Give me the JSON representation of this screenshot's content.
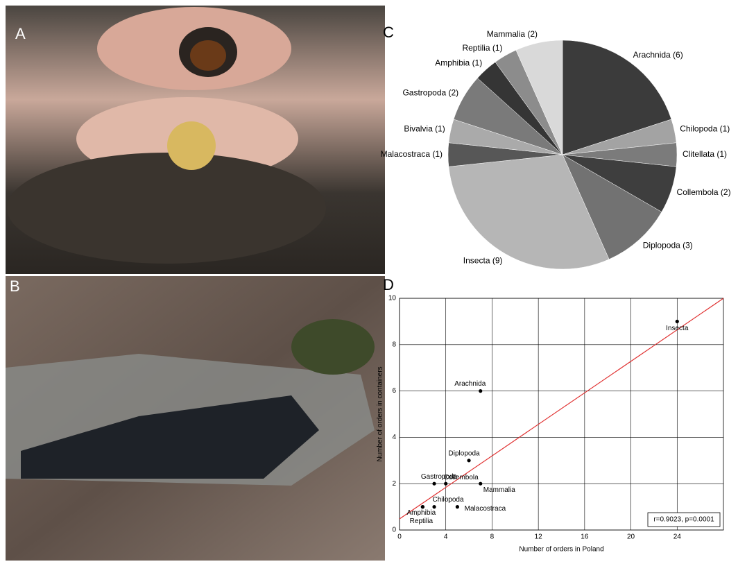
{
  "panels": [
    "A",
    "B",
    "C",
    "D"
  ],
  "chart_data": [
    {
      "type": "pie",
      "categories": [
        "Arachnida (6)",
        "Chilopoda (1)",
        "Clitellata (1)",
        "Collembola (2)",
        "Diplopoda (3)",
        "Insecta (9)",
        "Malacostraca (1)",
        "Bivalvia (1)",
        "Gastropoda (2)",
        "Amphibia (1)",
        "Reptilia (1)",
        "Mammalia (2)"
      ],
      "values": [
        6,
        1,
        1,
        2,
        3,
        9,
        1,
        1,
        2,
        1,
        1,
        2
      ],
      "colors": [
        "#3b3b3b",
        "#a3a3a3",
        "#7b7b7b",
        "#3e3e3e",
        "#727272",
        "#b6b6b6",
        "#575757",
        "#aaaaaa",
        "#7a7a7a",
        "#353535",
        "#8c8c8c",
        "#d9d9d9"
      ]
    },
    {
      "type": "scatter",
      "xlabel": "Number of orders in Poland",
      "ylabel": "Number of orders in containers",
      "labels": [
        "Insecta",
        "Arachnida",
        "Diplopoda",
        "Gastropoda",
        "Collembola",
        "Mammalia",
        "Chilopoda",
        "Malacostraca",
        "Amphibia",
        "Reptilia"
      ],
      "x": [
        24,
        7,
        6,
        3,
        4,
        7,
        3,
        5,
        2,
        2
      ],
      "y": [
        9,
        6,
        3,
        2,
        2,
        2,
        1,
        1,
        1,
        1
      ],
      "xlim": [
        0,
        28
      ],
      "xticks": [
        0,
        4,
        8,
        12,
        16,
        20,
        24
      ],
      "ylim": [
        0,
        10
      ],
      "yticks": [
        0,
        2,
        4,
        6,
        8,
        10
      ],
      "grid": true,
      "fit": {
        "intercept": 0.48,
        "slope": 0.34,
        "color": "#e03030"
      },
      "annotation": "r=0.9023, p=0.0001"
    }
  ]
}
